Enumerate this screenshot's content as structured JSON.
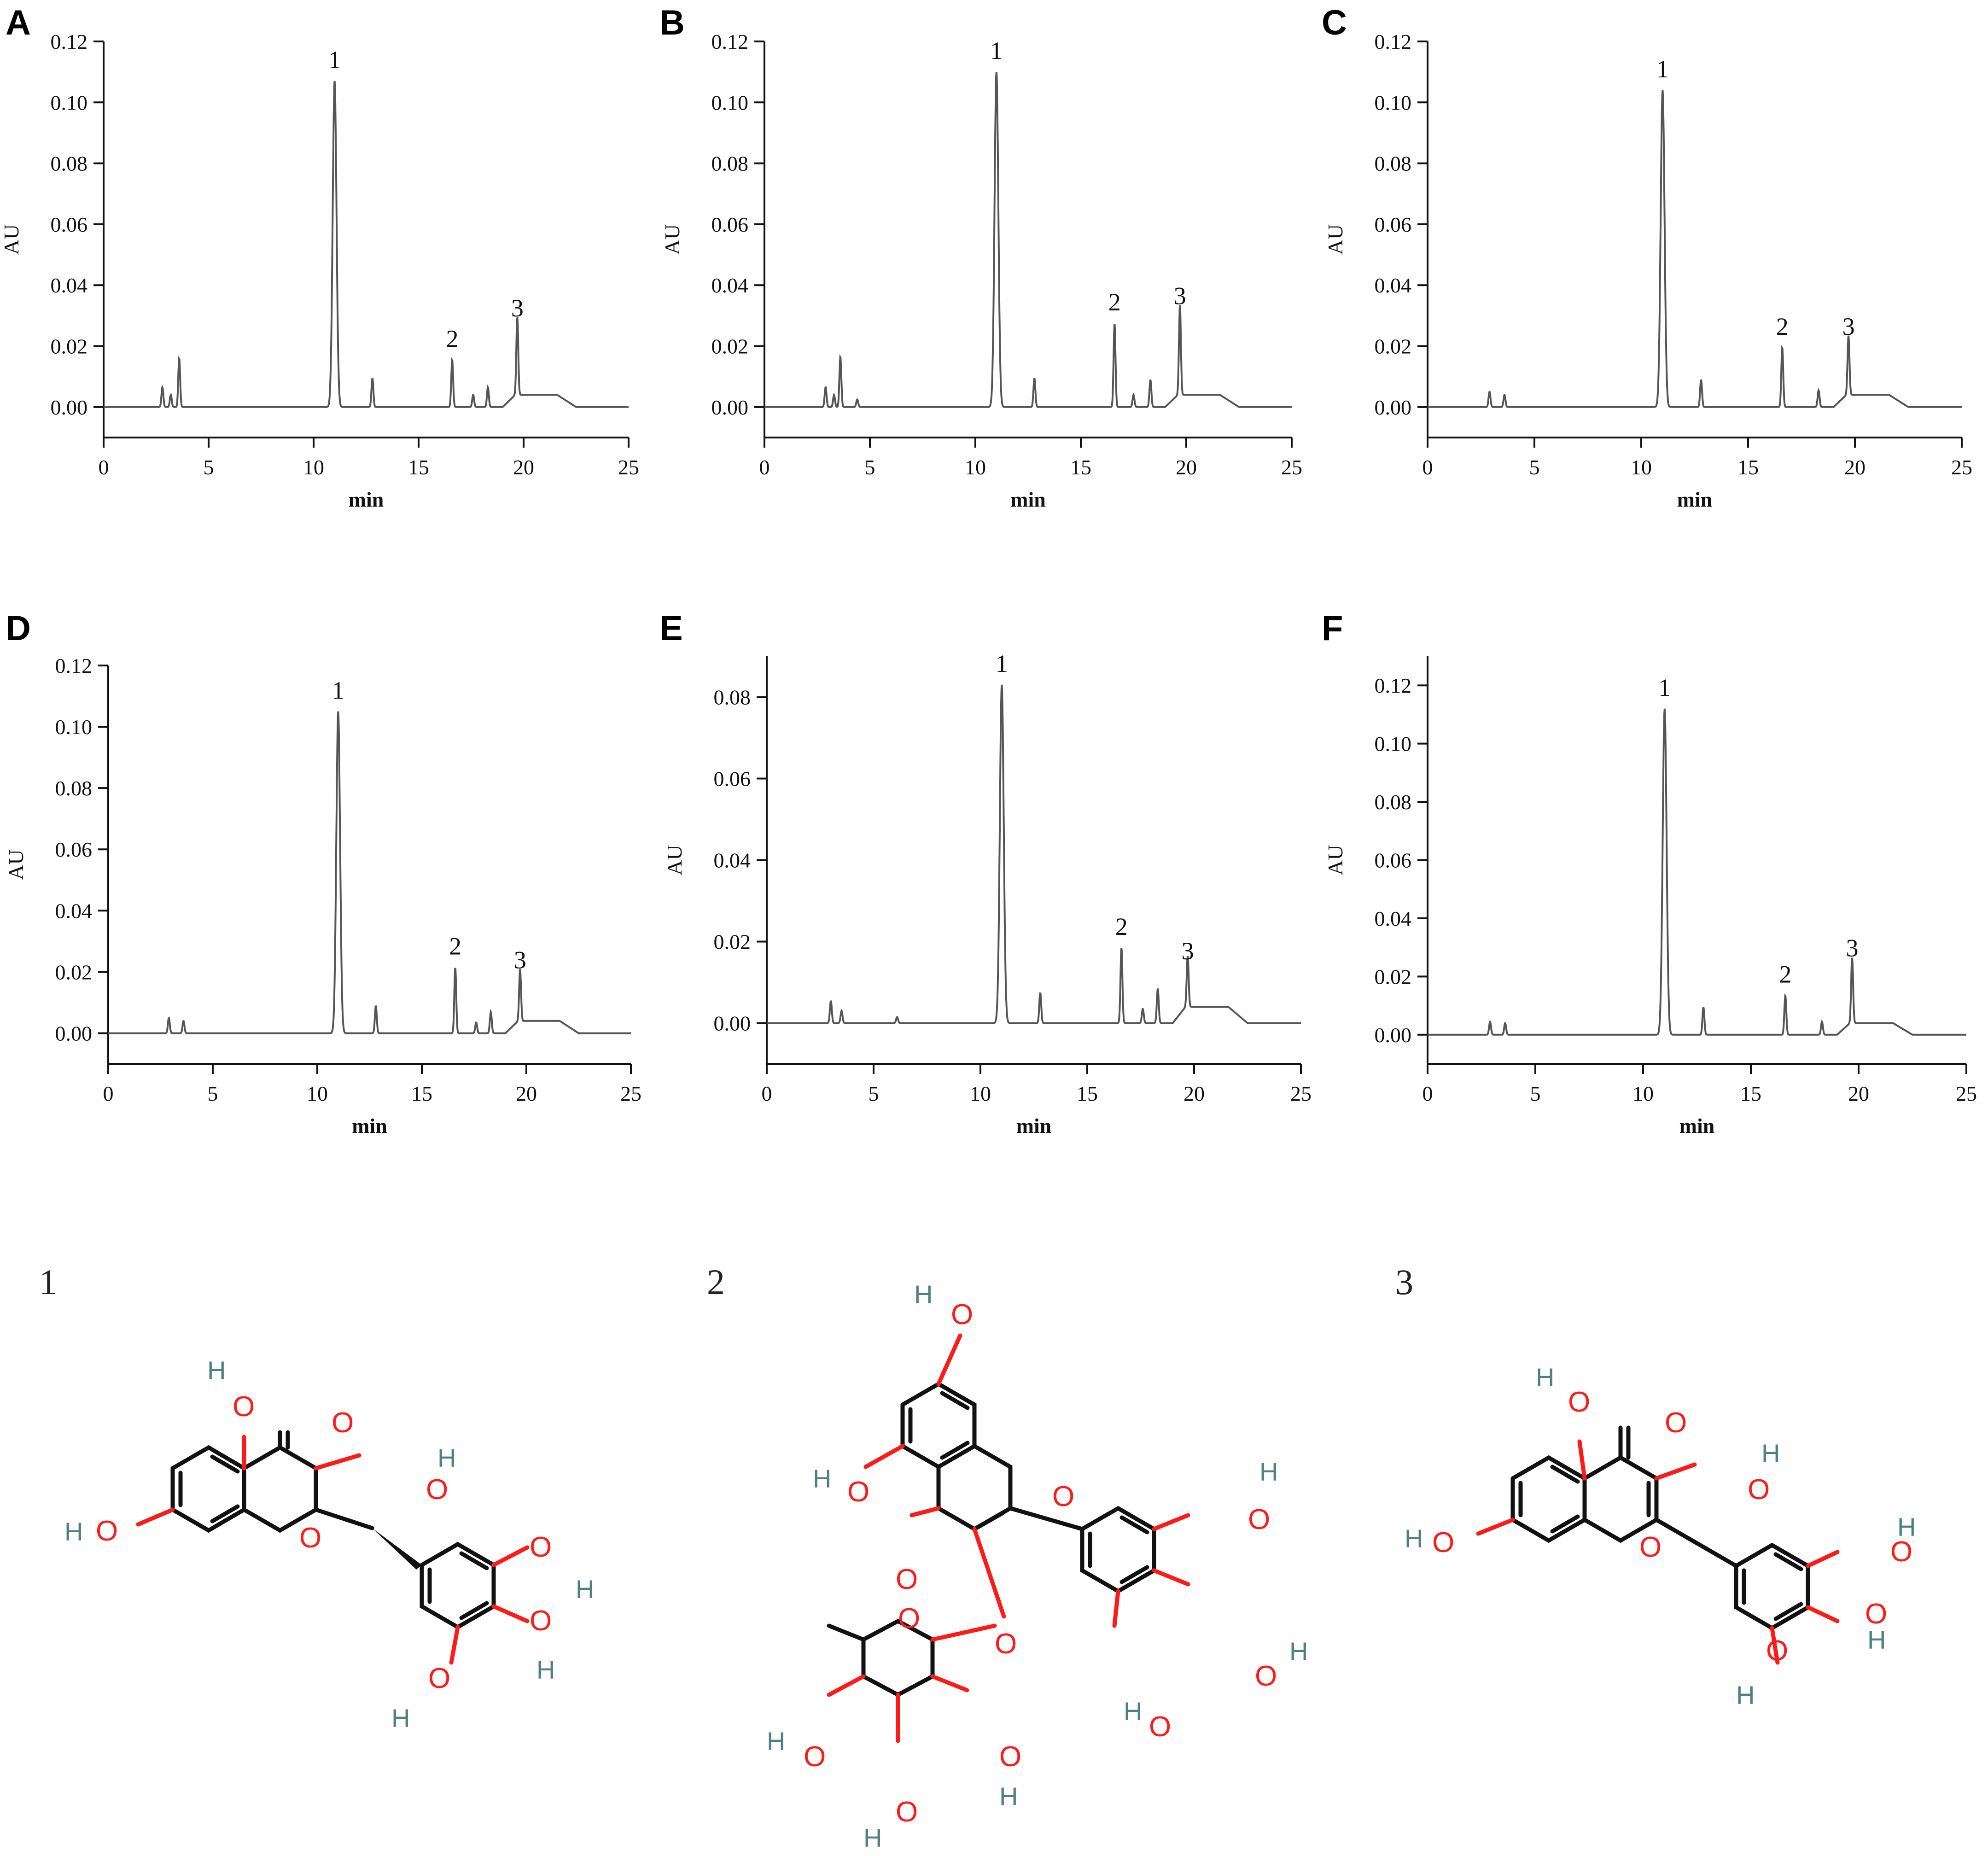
{
  "chart_data": [
    {
      "panel": "A",
      "type": "line",
      "xlabel": "min",
      "ylabel": "AU",
      "xlim": [
        0,
        25
      ],
      "ylim": [
        -0.01,
        0.12
      ],
      "xticks": [
        0,
        5,
        10,
        15,
        20,
        25
      ],
      "yticks": [
        "0.00",
        "0.02",
        "0.04",
        "0.06",
        "0.08",
        "0.10",
        "0.12"
      ],
      "peaks": [
        {
          "x": 2.8,
          "y": 0.0065
        },
        {
          "x": 3.2,
          "y": 0.004
        },
        {
          "x": 3.6,
          "y": 0.016
        },
        {
          "x": 11.0,
          "y": 0.107,
          "label": "1"
        },
        {
          "x": 12.8,
          "y": 0.0095
        },
        {
          "x": 16.6,
          "y": 0.0155,
          "label": "2"
        },
        {
          "x": 17.6,
          "y": 0.004
        },
        {
          "x": 18.3,
          "y": 0.0065
        },
        {
          "x": 19.7,
          "y": 0.0255,
          "label": "3"
        }
      ]
    },
    {
      "panel": "B",
      "type": "line",
      "xlabel": "min",
      "ylabel": "AU",
      "xlim": [
        0,
        25
      ],
      "ylim": [
        -0.01,
        0.12
      ],
      "xticks": [
        0,
        5,
        10,
        15,
        20,
        25
      ],
      "yticks": [
        "0.00",
        "0.02",
        "0.04",
        "0.06",
        "0.08",
        "0.10",
        "0.12"
      ],
      "peaks": [
        {
          "x": 2.9,
          "y": 0.0065
        },
        {
          "x": 3.3,
          "y": 0.004
        },
        {
          "x": 3.6,
          "y": 0.0165
        },
        {
          "x": 4.4,
          "y": 0.0025
        },
        {
          "x": 11.0,
          "y": 0.11,
          "label": "1"
        },
        {
          "x": 12.8,
          "y": 0.0095
        },
        {
          "x": 16.6,
          "y": 0.0275,
          "label": "2"
        },
        {
          "x": 17.5,
          "y": 0.004
        },
        {
          "x": 18.3,
          "y": 0.009
        },
        {
          "x": 19.7,
          "y": 0.0295,
          "label": "3"
        }
      ]
    },
    {
      "panel": "C",
      "type": "line",
      "xlabel": "min",
      "ylabel": "AU",
      "xlim": [
        0,
        25
      ],
      "ylim": [
        -0.01,
        0.12
      ],
      "xticks": [
        0,
        5,
        10,
        15,
        20,
        25
      ],
      "yticks": [
        "0.00",
        "0.02",
        "0.04",
        "0.06",
        "0.08",
        "0.10",
        "0.12"
      ],
      "peaks": [
        {
          "x": 2.9,
          "y": 0.005
        },
        {
          "x": 3.6,
          "y": 0.004
        },
        {
          "x": 11.0,
          "y": 0.104,
          "label": "1"
        },
        {
          "x": 12.8,
          "y": 0.009
        },
        {
          "x": 16.6,
          "y": 0.0195,
          "label": "2"
        },
        {
          "x": 18.3,
          "y": 0.0055
        },
        {
          "x": 19.7,
          "y": 0.0195,
          "label": "3"
        }
      ]
    },
    {
      "panel": "D",
      "type": "line",
      "xlabel": "min",
      "ylabel": "AU",
      "xlim": [
        0,
        25
      ],
      "ylim": [
        -0.01,
        0.12
      ],
      "xticks": [
        0,
        5,
        10,
        15,
        20,
        25
      ],
      "yticks": [
        "0.00",
        "0.02",
        "0.04",
        "0.06",
        "0.08",
        "0.10",
        "0.12"
      ],
      "peaks": [
        {
          "x": 2.9,
          "y": 0.005
        },
        {
          "x": 3.6,
          "y": 0.004
        },
        {
          "x": 11.0,
          "y": 0.105,
          "label": "1"
        },
        {
          "x": 12.8,
          "y": 0.009
        },
        {
          "x": 16.6,
          "y": 0.0215,
          "label": "2"
        },
        {
          "x": 17.6,
          "y": 0.0035
        },
        {
          "x": 18.3,
          "y": 0.007
        },
        {
          "x": 19.7,
          "y": 0.017,
          "label": "3"
        }
      ]
    },
    {
      "panel": "E",
      "type": "line",
      "xlabel": "min",
      "ylabel": "AU",
      "xlim": [
        0,
        25
      ],
      "ylim": [
        -0.01,
        0.09
      ],
      "xticks": [
        0,
        5,
        10,
        15,
        20,
        25
      ],
      "yticks": [
        "0.00",
        "0.02",
        "0.04",
        "0.06",
        "0.08"
      ],
      "peaks": [
        {
          "x": 3.0,
          "y": 0.0055
        },
        {
          "x": 3.5,
          "y": 0.003
        },
        {
          "x": 6.1,
          "y": 0.0015
        },
        {
          "x": 11.0,
          "y": 0.083,
          "label": "1"
        },
        {
          "x": 12.8,
          "y": 0.0075
        },
        {
          "x": 16.6,
          "y": 0.0185,
          "label": "2"
        },
        {
          "x": 17.6,
          "y": 0.0035
        },
        {
          "x": 18.3,
          "y": 0.0085
        },
        {
          "x": 19.7,
          "y": 0.0125,
          "label": "3"
        }
      ]
    },
    {
      "panel": "F",
      "type": "line",
      "xlabel": "min",
      "ylabel": "AU",
      "xlim": [
        0,
        25
      ],
      "ylim": [
        -0.01,
        0.13
      ],
      "xticks": [
        0,
        5,
        10,
        15,
        20,
        25
      ],
      "yticks": [
        "0.00",
        "0.02",
        "0.04",
        "0.06",
        "0.08",
        "0.10",
        "0.12"
      ],
      "peaks": [
        {
          "x": 2.9,
          "y": 0.0045
        },
        {
          "x": 3.6,
          "y": 0.004
        },
        {
          "x": 11.0,
          "y": 0.112,
          "label": "1"
        },
        {
          "x": 12.8,
          "y": 0.0095
        },
        {
          "x": 16.6,
          "y": 0.0135,
          "label": "2"
        },
        {
          "x": 18.3,
          "y": 0.0045
        },
        {
          "x": 19.7,
          "y": 0.0225,
          "label": "3"
        }
      ]
    }
  ],
  "structures": [
    {
      "number": "1",
      "atoms": [
        "O",
        "H"
      ]
    },
    {
      "number": "2",
      "atoms": [
        "O",
        "H"
      ]
    },
    {
      "number": "3",
      "atoms": [
        "O",
        "H"
      ]
    }
  ],
  "colors": {
    "trace": "#555555",
    "axis": "#111111",
    "oxygen": "#ff1a1a",
    "hydrogen": "#4d8080"
  }
}
